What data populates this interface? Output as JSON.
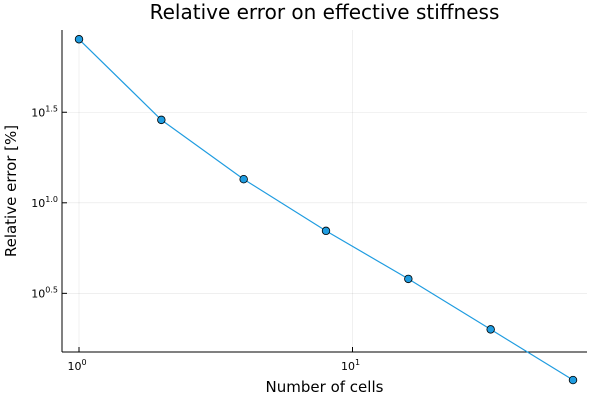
{
  "chart_data": {
    "type": "line",
    "title": "Relative error on effective stiffness",
    "xlabel": "Number of cells",
    "ylabel": "Relative error [%]",
    "xscale": "log",
    "yscale": "log",
    "xlim": [
      1,
      64
    ],
    "ylim": [
      1.5,
      90
    ],
    "x_ticks": [
      {
        "base": "10",
        "exp": "0",
        "value": 1
      },
      {
        "base": "10",
        "exp": "1",
        "value": 10
      }
    ],
    "y_ticks": [
      {
        "base": "10",
        "exp": "0.5",
        "value": 3.1623
      },
      {
        "base": "10",
        "exp": "1.0",
        "value": 10
      },
      {
        "base": "10",
        "exp": "1.5",
        "value": 31.623
      }
    ],
    "grid": true,
    "legend": "none",
    "series": [
      {
        "color": "#1f9ce0",
        "marker": "circle",
        "x": [
          1,
          2,
          4,
          8,
          16,
          32,
          64
        ],
        "y": [
          80.0,
          28.7,
          13.5,
          7.0,
          3.8,
          2.0,
          1.05
        ]
      }
    ]
  }
}
